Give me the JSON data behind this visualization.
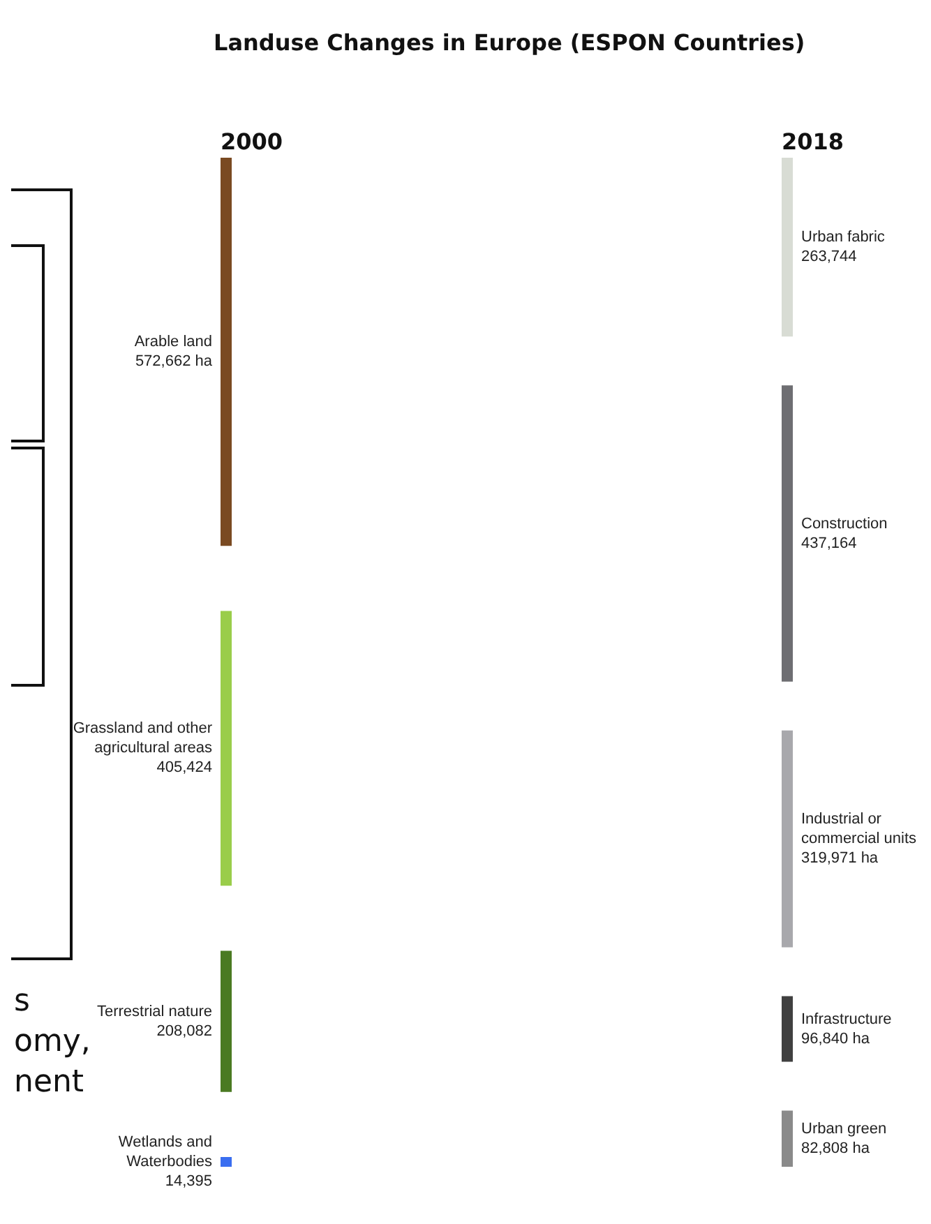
{
  "chart_data": {
    "type": "other",
    "title": "Landuse Changes in Europe (ESPON Countries)",
    "categories": [
      "Arable land",
      "Grassland and other agricultural areas",
      "Terrestrial nature",
      "Wetlands and Waterbodies",
      "Urban fabric",
      "Construction",
      "Industrial or commercial units",
      "Infrastructure",
      "Urban green"
    ],
    "values": [
      572662,
      405424,
      208082,
      14395,
      263744,
      437164,
      319971,
      96840,
      82808
    ],
    "value_labels": [
      "572,662 ha",
      "405,424",
      "208,082",
      "14,395",
      "263,744",
      "437,164",
      "319,971 ha",
      "96,840 ha",
      "82,808 ha"
    ],
    "colors": [
      "#7a4a22",
      "#9acd4a",
      "#4a7a22",
      "#3a6ef0",
      "#d8dcd4",
      "#6e6e72",
      "#a8a8ac",
      "#404040",
      "#8a8a8a"
    ],
    "annotations": [
      "2000",
      "2018",
      "s",
      "omy,",
      "nent"
    ]
  }
}
